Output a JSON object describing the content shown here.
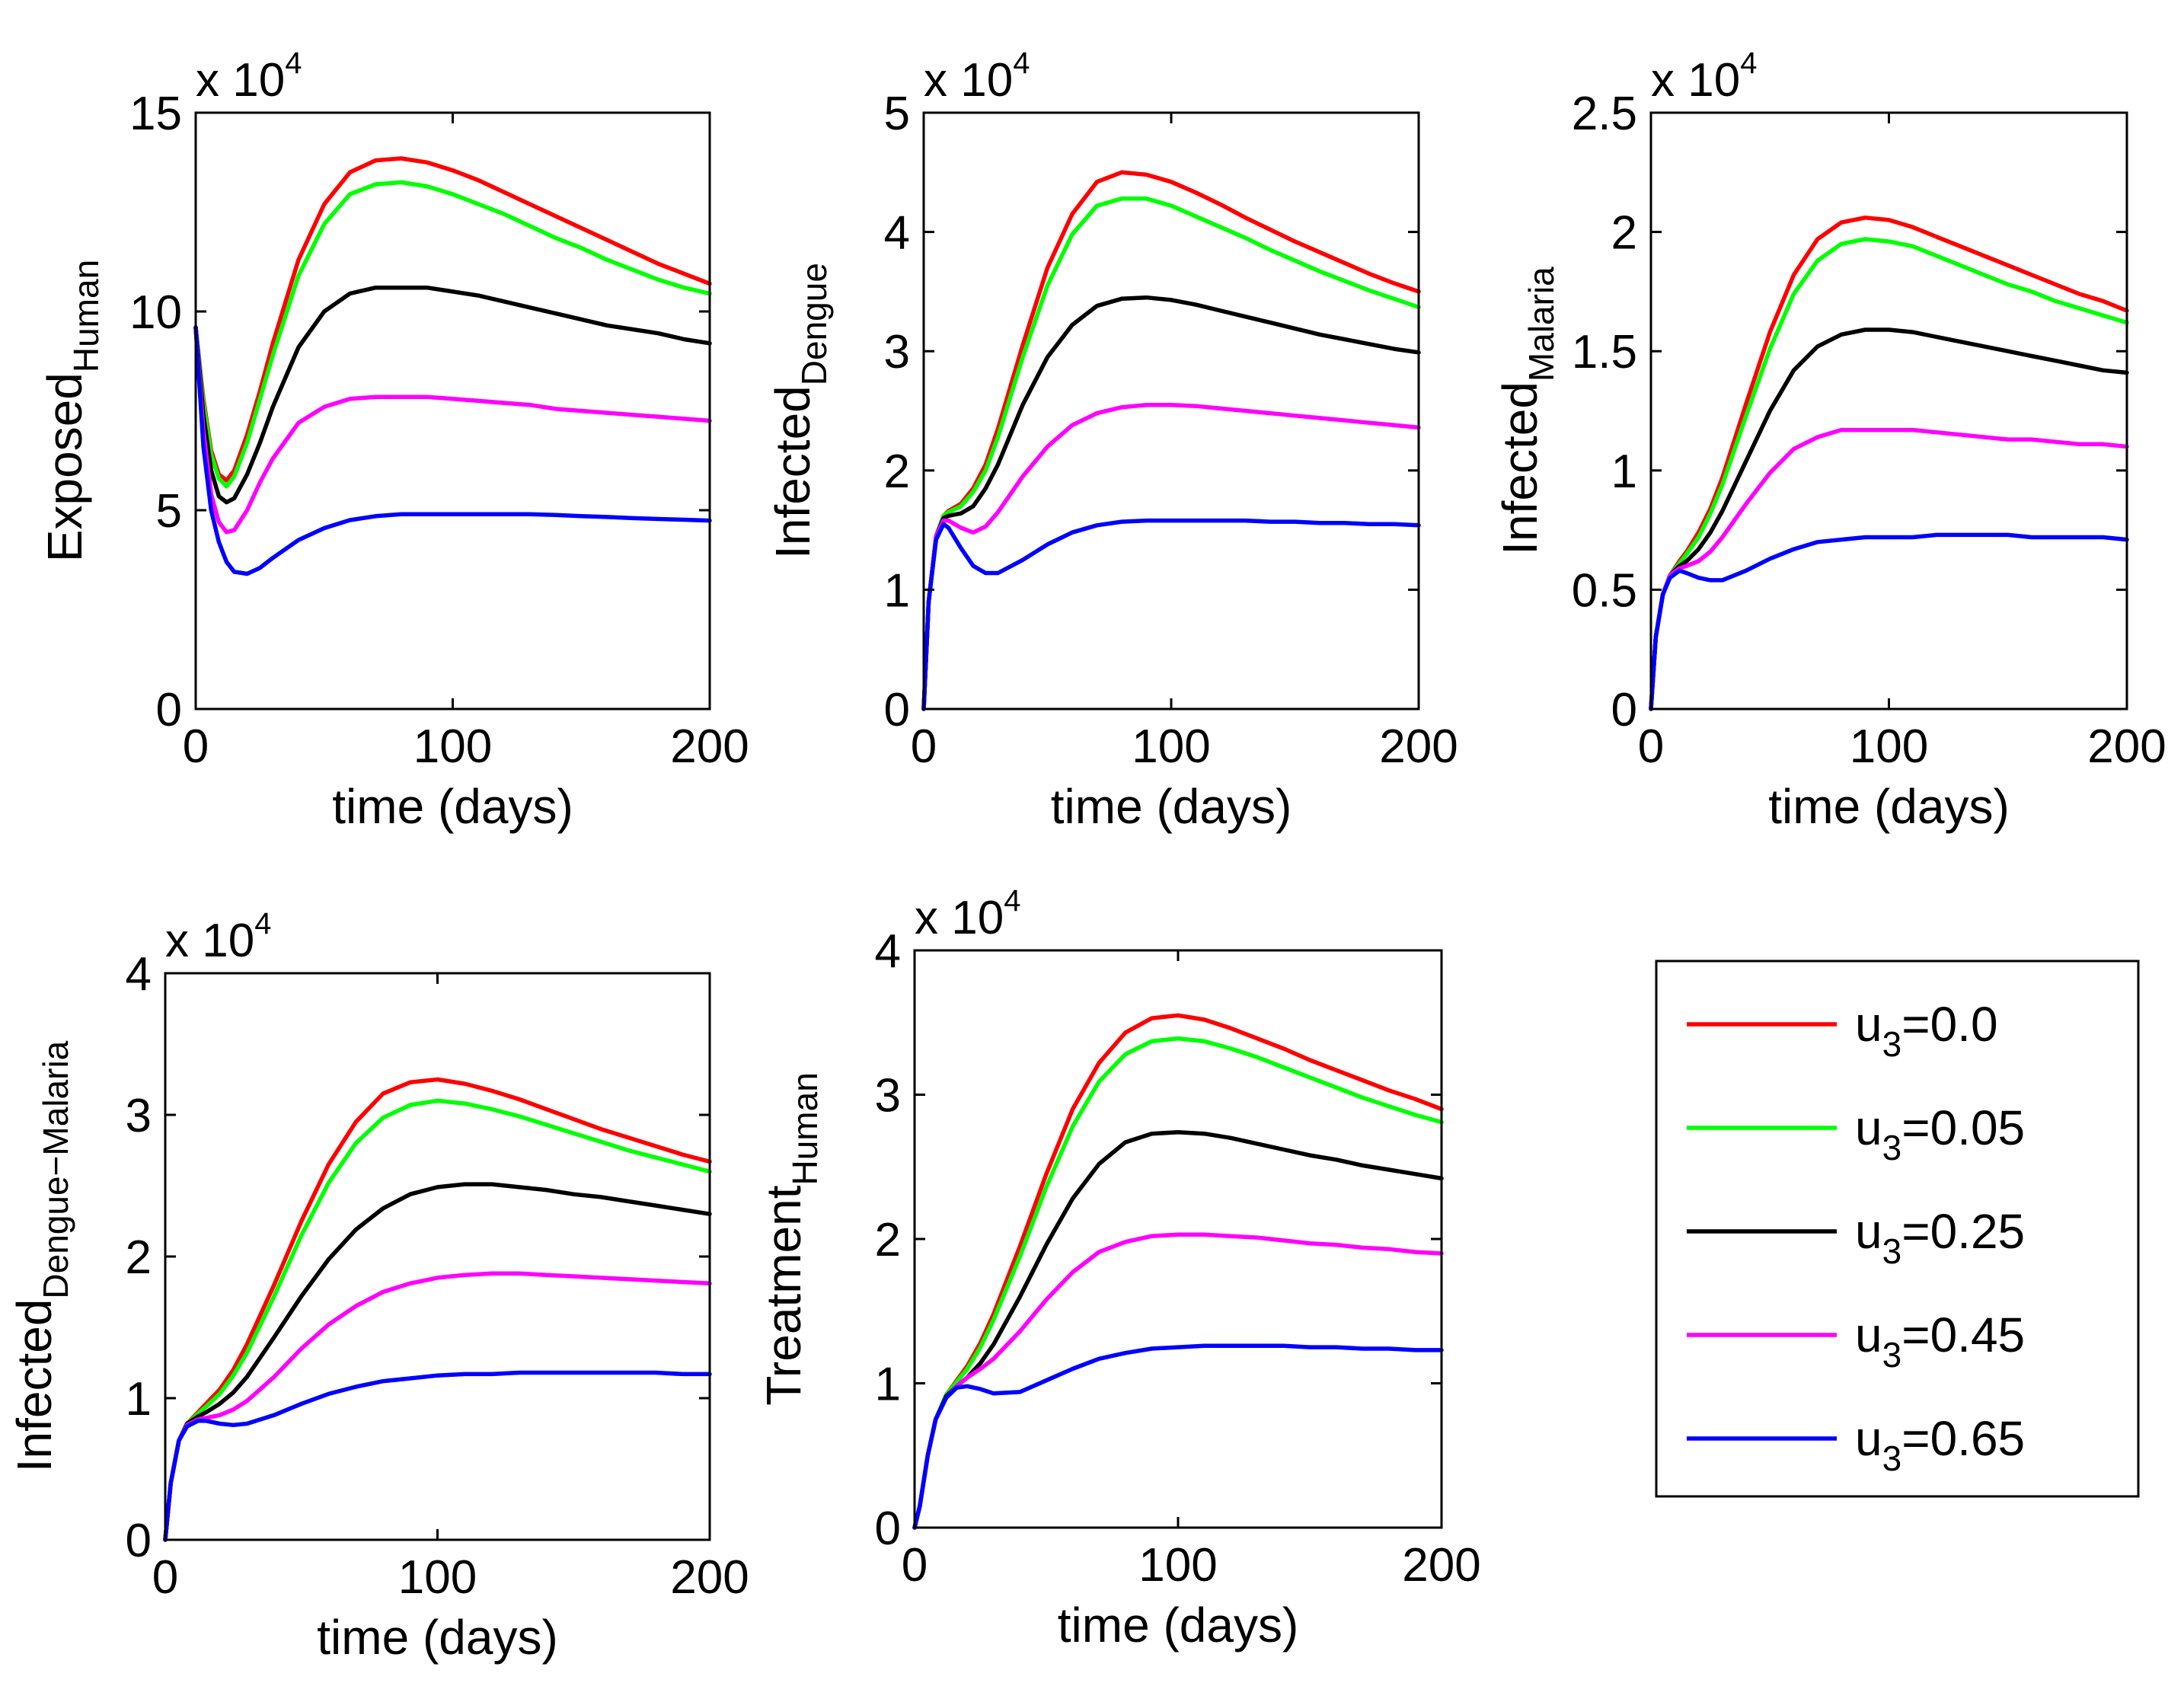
{
  "figure": {
    "legend_title": "",
    "x_label": "time (days)"
  },
  "chart_data": [
    {
      "type": "line",
      "id": "exposed-human",
      "ylabel_main": "Exposed",
      "ylabel_sub": "Human",
      "xlabel": "time (days)",
      "xlim": [
        0,
        200
      ],
      "ylim": [
        0,
        15
      ],
      "exponent_label": "x 10",
      "exponent_power": "4",
      "xticks": [
        0,
        100,
        200
      ],
      "yticks": [
        0,
        5,
        10,
        15
      ],
      "x": [
        0,
        3,
        6,
        9,
        12,
        15,
        20,
        25,
        30,
        40,
        50,
        60,
        70,
        80,
        90,
        100,
        110,
        120,
        130,
        140,
        150,
        160,
        170,
        180,
        190,
        200
      ],
      "series": [
        {
          "name": "u3=0.0",
          "color": "#ff0000",
          "values": [
            9.6,
            7.8,
            6.5,
            5.9,
            5.75,
            6.0,
            6.9,
            8.0,
            9.2,
            11.3,
            12.7,
            13.5,
            13.8,
            13.85,
            13.75,
            13.55,
            13.3,
            13.0,
            12.7,
            12.4,
            12.1,
            11.8,
            11.5,
            11.2,
            10.95,
            10.7
          ]
        },
        {
          "name": "u3=0.05",
          "color": "#00ff00",
          "values": [
            9.6,
            7.7,
            6.4,
            5.8,
            5.6,
            5.85,
            6.7,
            7.8,
            8.9,
            10.9,
            12.2,
            12.95,
            13.2,
            13.25,
            13.15,
            12.95,
            12.7,
            12.45,
            12.15,
            11.85,
            11.6,
            11.3,
            11.05,
            10.8,
            10.6,
            10.45
          ]
        },
        {
          "name": "u3=0.25",
          "color": "#000000",
          "values": [
            9.6,
            7.4,
            6.0,
            5.35,
            5.2,
            5.3,
            5.9,
            6.7,
            7.6,
            9.1,
            10.0,
            10.45,
            10.6,
            10.6,
            10.6,
            10.5,
            10.4,
            10.25,
            10.1,
            9.95,
            9.8,
            9.65,
            9.55,
            9.45,
            9.3,
            9.2
          ]
        },
        {
          "name": "u3=0.45",
          "color": "#ff00ff",
          "values": [
            9.6,
            7.0,
            5.4,
            4.7,
            4.45,
            4.5,
            5.0,
            5.7,
            6.3,
            7.2,
            7.6,
            7.8,
            7.85,
            7.85,
            7.85,
            7.8,
            7.75,
            7.7,
            7.65,
            7.55,
            7.5,
            7.45,
            7.4,
            7.35,
            7.3,
            7.25
          ]
        },
        {
          "name": "u3=0.65",
          "color": "#0000ff",
          "values": [
            9.6,
            6.6,
            5.0,
            4.2,
            3.7,
            3.45,
            3.4,
            3.55,
            3.8,
            4.25,
            4.55,
            4.75,
            4.85,
            4.9,
            4.9,
            4.9,
            4.9,
            4.9,
            4.9,
            4.88,
            4.85,
            4.83,
            4.8,
            4.78,
            4.76,
            4.74
          ]
        }
      ]
    },
    {
      "type": "line",
      "id": "infected-dengue",
      "ylabel_main": "Infected",
      "ylabel_sub": "Dengue",
      "xlabel": "time (days)",
      "xlim": [
        0,
        200
      ],
      "ylim": [
        0,
        5
      ],
      "exponent_label": "x 10",
      "exponent_power": "4",
      "xticks": [
        0,
        100,
        200
      ],
      "yticks": [
        0,
        1,
        2,
        3,
        4,
        5
      ],
      "x": [
        0,
        2,
        5,
        8,
        10,
        15,
        20,
        25,
        30,
        40,
        50,
        60,
        70,
        80,
        90,
        100,
        110,
        120,
        130,
        140,
        150,
        160,
        170,
        180,
        190,
        200
      ],
      "series": [
        {
          "name": "u3=0.0",
          "color": "#ff0000",
          "values": [
            0,
            0.9,
            1.45,
            1.62,
            1.66,
            1.72,
            1.85,
            2.05,
            2.35,
            3.05,
            3.7,
            4.15,
            4.42,
            4.5,
            4.48,
            4.42,
            4.33,
            4.23,
            4.12,
            4.02,
            3.92,
            3.83,
            3.74,
            3.65,
            3.57,
            3.5
          ]
        },
        {
          "name": "u3=0.05",
          "color": "#00ff00",
          "values": [
            0,
            0.9,
            1.45,
            1.62,
            1.65,
            1.7,
            1.82,
            2.0,
            2.28,
            2.95,
            3.55,
            3.98,
            4.22,
            4.28,
            4.28,
            4.22,
            4.13,
            4.04,
            3.95,
            3.85,
            3.76,
            3.67,
            3.59,
            3.51,
            3.44,
            3.37
          ]
        },
        {
          "name": "u3=0.25",
          "color": "#000000",
          "values": [
            0,
            0.9,
            1.45,
            1.6,
            1.62,
            1.64,
            1.7,
            1.85,
            2.05,
            2.55,
            2.95,
            3.22,
            3.38,
            3.44,
            3.45,
            3.43,
            3.39,
            3.34,
            3.29,
            3.24,
            3.19,
            3.14,
            3.1,
            3.06,
            3.02,
            2.99
          ]
        },
        {
          "name": "u3=0.45",
          "color": "#ff00ff",
          "values": [
            0,
            0.9,
            1.45,
            1.58,
            1.58,
            1.52,
            1.48,
            1.53,
            1.65,
            1.95,
            2.2,
            2.38,
            2.48,
            2.53,
            2.55,
            2.55,
            2.54,
            2.52,
            2.5,
            2.48,
            2.46,
            2.44,
            2.42,
            2.4,
            2.38,
            2.36
          ]
        },
        {
          "name": "u3=0.65",
          "color": "#0000ff",
          "values": [
            0,
            0.9,
            1.42,
            1.55,
            1.52,
            1.35,
            1.2,
            1.14,
            1.14,
            1.25,
            1.38,
            1.48,
            1.54,
            1.57,
            1.58,
            1.58,
            1.58,
            1.58,
            1.58,
            1.57,
            1.57,
            1.56,
            1.56,
            1.55,
            1.55,
            1.54
          ]
        }
      ]
    },
    {
      "type": "line",
      "id": "infected-malaria",
      "ylabel_main": "Infected",
      "ylabel_sub": "Malaria",
      "xlabel": "time (days)",
      "xlim": [
        0,
        200
      ],
      "ylim": [
        0,
        2.5
      ],
      "exponent_label": "x 10",
      "exponent_power": "4",
      "xticks": [
        0,
        100,
        200
      ],
      "yticks": [
        0,
        0.5,
        1,
        1.5,
        2,
        2.5
      ],
      "ytick_labels": [
        "0",
        "0.5",
        "1",
        "1.5",
        "2",
        "2.5"
      ],
      "x": [
        0,
        2,
        5,
        8,
        12,
        15,
        20,
        25,
        30,
        40,
        50,
        60,
        70,
        80,
        90,
        100,
        110,
        120,
        130,
        140,
        150,
        160,
        170,
        180,
        190,
        200
      ],
      "series": [
        {
          "name": "u3=0.0",
          "color": "#ff0000",
          "values": [
            0,
            0.3,
            0.48,
            0.56,
            0.62,
            0.66,
            0.74,
            0.84,
            0.97,
            1.28,
            1.58,
            1.82,
            1.97,
            2.04,
            2.06,
            2.05,
            2.02,
            1.98,
            1.94,
            1.9,
            1.86,
            1.82,
            1.78,
            1.74,
            1.71,
            1.67
          ]
        },
        {
          "name": "u3=0.05",
          "color": "#00ff00",
          "values": [
            0,
            0.3,
            0.48,
            0.56,
            0.61,
            0.65,
            0.72,
            0.82,
            0.94,
            1.23,
            1.51,
            1.74,
            1.88,
            1.95,
            1.97,
            1.96,
            1.94,
            1.9,
            1.86,
            1.82,
            1.78,
            1.75,
            1.71,
            1.68,
            1.65,
            1.62
          ]
        },
        {
          "name": "u3=0.25",
          "color": "#000000",
          "values": [
            0,
            0.3,
            0.48,
            0.56,
            0.6,
            0.62,
            0.67,
            0.74,
            0.83,
            1.04,
            1.25,
            1.42,
            1.52,
            1.57,
            1.59,
            1.59,
            1.58,
            1.56,
            1.54,
            1.52,
            1.5,
            1.48,
            1.46,
            1.44,
            1.42,
            1.41
          ]
        },
        {
          "name": "u3=0.45",
          "color": "#ff00ff",
          "values": [
            0,
            0.3,
            0.48,
            0.56,
            0.59,
            0.6,
            0.62,
            0.66,
            0.72,
            0.86,
            0.99,
            1.09,
            1.14,
            1.17,
            1.17,
            1.17,
            1.17,
            1.16,
            1.15,
            1.14,
            1.13,
            1.13,
            1.12,
            1.11,
            1.11,
            1.1
          ]
        },
        {
          "name": "u3=0.65",
          "color": "#0000ff",
          "values": [
            0,
            0.3,
            0.48,
            0.55,
            0.58,
            0.57,
            0.55,
            0.54,
            0.54,
            0.58,
            0.63,
            0.67,
            0.7,
            0.71,
            0.72,
            0.72,
            0.72,
            0.73,
            0.73,
            0.73,
            0.73,
            0.72,
            0.72,
            0.72,
            0.72,
            0.71
          ]
        }
      ]
    },
    {
      "type": "line",
      "id": "infected-dengue-malaria",
      "ylabel_main": "Infected",
      "ylabel_sub": "Dengue−Malaria",
      "xlabel": "time (days)",
      "xlim": [
        0,
        200
      ],
      "ylim": [
        0,
        4
      ],
      "exponent_label": "x 10",
      "exponent_power": "4",
      "xticks": [
        0,
        100,
        200
      ],
      "yticks": [
        0,
        1,
        2,
        3,
        4
      ],
      "x": [
        0,
        2,
        5,
        8,
        12,
        15,
        20,
        25,
        30,
        40,
        50,
        60,
        70,
        80,
        90,
        100,
        110,
        120,
        130,
        140,
        150,
        160,
        170,
        180,
        190,
        200
      ],
      "series": [
        {
          "name": "u3=0.0",
          "color": "#ff0000",
          "values": [
            0,
            0.4,
            0.7,
            0.82,
            0.9,
            0.96,
            1.06,
            1.2,
            1.38,
            1.8,
            2.25,
            2.65,
            2.95,
            3.15,
            3.23,
            3.25,
            3.22,
            3.17,
            3.11,
            3.04,
            2.97,
            2.9,
            2.84,
            2.78,
            2.72,
            2.67
          ]
        },
        {
          "name": "u3=0.05",
          "color": "#00ff00",
          "values": [
            0,
            0.4,
            0.7,
            0.82,
            0.89,
            0.94,
            1.03,
            1.16,
            1.32,
            1.72,
            2.15,
            2.52,
            2.8,
            2.98,
            3.07,
            3.1,
            3.08,
            3.04,
            2.99,
            2.93,
            2.87,
            2.81,
            2.75,
            2.7,
            2.65,
            2.6
          ]
        },
        {
          "name": "u3=0.25",
          "color": "#000000",
          "values": [
            0,
            0.4,
            0.7,
            0.82,
            0.87,
            0.9,
            0.96,
            1.04,
            1.15,
            1.43,
            1.72,
            1.98,
            2.19,
            2.34,
            2.44,
            2.49,
            2.51,
            2.51,
            2.49,
            2.47,
            2.44,
            2.42,
            2.39,
            2.36,
            2.33,
            2.3
          ]
        },
        {
          "name": "u3=0.45",
          "color": "#ff00ff",
          "values": [
            0,
            0.4,
            0.7,
            0.81,
            0.85,
            0.86,
            0.88,
            0.92,
            0.98,
            1.15,
            1.35,
            1.52,
            1.65,
            1.75,
            1.81,
            1.85,
            1.87,
            1.88,
            1.88,
            1.87,
            1.86,
            1.85,
            1.84,
            1.83,
            1.82,
            1.81
          ]
        },
        {
          "name": "u3=0.65",
          "color": "#0000ff",
          "values": [
            0,
            0.4,
            0.7,
            0.8,
            0.84,
            0.84,
            0.82,
            0.81,
            0.82,
            0.88,
            0.96,
            1.03,
            1.08,
            1.12,
            1.14,
            1.16,
            1.17,
            1.17,
            1.18,
            1.18,
            1.18,
            1.18,
            1.18,
            1.18,
            1.17,
            1.17
          ]
        }
      ]
    },
    {
      "type": "line",
      "id": "treatment-human",
      "ylabel_main": "Treatment",
      "ylabel_sub": "Human",
      "xlabel": "time (days)",
      "xlim": [
        0,
        200
      ],
      "ylim": [
        0,
        4
      ],
      "exponent_label": "x 10",
      "exponent_power": "4",
      "xticks": [
        0,
        100,
        200
      ],
      "yticks": [
        0,
        1,
        2,
        3,
        4
      ],
      "x": [
        0,
        2,
        5,
        8,
        12,
        16,
        20,
        25,
        30,
        40,
        50,
        60,
        70,
        80,
        90,
        100,
        110,
        120,
        130,
        140,
        150,
        160,
        170,
        180,
        190,
        200
      ],
      "series": [
        {
          "name": "u3=0.0",
          "color": "#ff0000",
          "values": [
            0,
            0.15,
            0.5,
            0.75,
            0.92,
            1.02,
            1.12,
            1.28,
            1.48,
            1.95,
            2.45,
            2.9,
            3.22,
            3.43,
            3.53,
            3.55,
            3.52,
            3.46,
            3.39,
            3.32,
            3.24,
            3.17,
            3.1,
            3.03,
            2.97,
            2.9
          ]
        },
        {
          "name": "u3=0.05",
          "color": "#00ff00",
          "values": [
            0,
            0.15,
            0.5,
            0.75,
            0.92,
            1.01,
            1.1,
            1.25,
            1.44,
            1.88,
            2.36,
            2.78,
            3.09,
            3.28,
            3.37,
            3.39,
            3.37,
            3.32,
            3.26,
            3.19,
            3.12,
            3.05,
            2.98,
            2.92,
            2.86,
            2.81
          ]
        },
        {
          "name": "u3=0.25",
          "color": "#000000",
          "values": [
            0,
            0.15,
            0.5,
            0.75,
            0.91,
            0.98,
            1.04,
            1.14,
            1.27,
            1.6,
            1.96,
            2.28,
            2.52,
            2.67,
            2.73,
            2.74,
            2.73,
            2.7,
            2.66,
            2.62,
            2.58,
            2.55,
            2.51,
            2.48,
            2.45,
            2.42
          ]
        },
        {
          "name": "u3=0.45",
          "color": "#ff00ff",
          "values": [
            0,
            0.15,
            0.5,
            0.75,
            0.9,
            0.98,
            1.04,
            1.1,
            1.17,
            1.36,
            1.58,
            1.77,
            1.91,
            1.98,
            2.02,
            2.03,
            2.03,
            2.02,
            2.01,
            1.99,
            1.97,
            1.96,
            1.94,
            1.93,
            1.91,
            1.9
          ]
        },
        {
          "name": "u3=0.65",
          "color": "#0000ff",
          "values": [
            0,
            0.15,
            0.5,
            0.75,
            0.9,
            0.97,
            0.98,
            0.96,
            0.93,
            0.94,
            1.02,
            1.1,
            1.17,
            1.21,
            1.24,
            1.25,
            1.26,
            1.26,
            1.26,
            1.26,
            1.25,
            1.25,
            1.24,
            1.24,
            1.23,
            1.23
          ]
        }
      ]
    }
  ],
  "legend": {
    "placement": "bottom-right",
    "entries": [
      {
        "prefix": "u",
        "sub": "3",
        "suffix": "=0.0",
        "color": "#ff0000"
      },
      {
        "prefix": "u",
        "sub": "3",
        "suffix": "=0.05",
        "color": "#00ff00"
      },
      {
        "prefix": "u",
        "sub": "3",
        "suffix": "=0.25",
        "color": "#000000"
      },
      {
        "prefix": "u",
        "sub": "3",
        "suffix": "=0.45",
        "color": "#ff00ff"
      },
      {
        "prefix": "u",
        "sub": "3",
        "suffix": "=0.65",
        "color": "#0000ff"
      }
    ]
  }
}
